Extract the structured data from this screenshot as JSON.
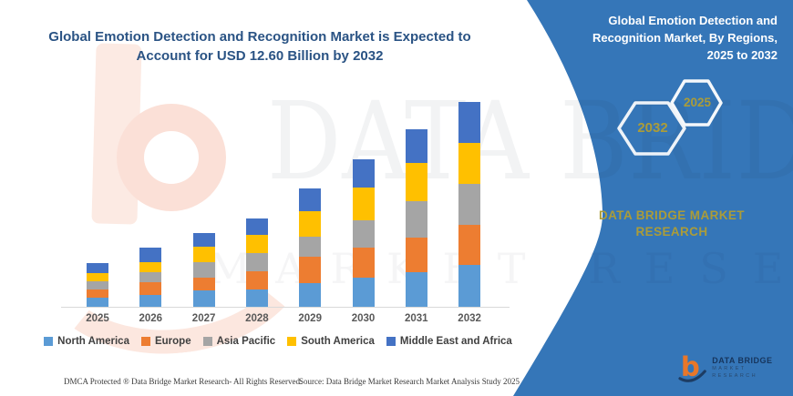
{
  "chart": {
    "title_line1": "Global Emotion Detection and Recognition Market is Expected to",
    "title_line2": "Account for USD 12.60 Billion by 2032"
  },
  "chart_data": {
    "type": "bar",
    "stacked": true,
    "title": "Global Emotion Detection and Recognition Market is Expected to Account for USD 12.60 Billion by 2032",
    "unit": "USD Billion",
    "categories": [
      "2025",
      "2026",
      "2027",
      "2028",
      "2029",
      "2030",
      "2031",
      "2032"
    ],
    "series": [
      {
        "name": "North America",
        "color": "#5B9BD5",
        "values": [
          0.55,
          0.75,
          1.03,
          1.09,
          1.46,
          1.78,
          2.11,
          2.57
        ]
      },
      {
        "name": "Europe",
        "color": "#ED7D31",
        "values": [
          0.52,
          0.75,
          0.75,
          1.12,
          1.63,
          1.87,
          2.15,
          2.49
        ]
      },
      {
        "name": "Asia Pacific",
        "color": "#A5A5A5",
        "values": [
          0.52,
          0.62,
          0.94,
          1.12,
          1.22,
          1.68,
          2.24,
          2.49
        ]
      },
      {
        "name": "South America",
        "color": "#FFC000",
        "values": [
          0.51,
          0.6,
          0.98,
          1.07,
          1.59,
          1.98,
          2.34,
          2.53
        ]
      },
      {
        "name": "Middle East and Africa",
        "color": "#4472C4",
        "values": [
          0.58,
          0.9,
          0.81,
          1.04,
          1.37,
          1.76,
          2.09,
          2.52
        ]
      }
    ],
    "totals": [
      2.68,
      3.62,
      4.51,
      5.44,
      7.27,
      9.07,
      10.93,
      12.6
    ],
    "ylim": [
      0,
      12.6
    ],
    "y_axis_visible": false,
    "grid": false,
    "legend_position": "bottom"
  },
  "watermarks": {
    "brand_text": "DATA BRIDGE",
    "sub_text": "MARKET RESEARCH"
  },
  "panel": {
    "background": "#3576b8",
    "accent": "#ab9c39",
    "title_line1": "Global Emotion Detection and",
    "title_line2": "Recognition Market, By Regions,",
    "title_line3": "2025 to 2032",
    "hex_left_label": "2032",
    "hex_right_label": "2025",
    "brand_line1": "DATA BRIDGE MARKET",
    "brand_line2": "RESEARCH",
    "logo": {
      "mark": "b",
      "name": "DATA BRIDGE",
      "sub": "MARKET RESEARCH"
    }
  },
  "footer": {
    "dmca": "DMCA Protected ® Data Bridge Market Research-  All Rights Reserved.",
    "source": "Source: Data Bridge Market Research  Market Analysis Study 2025"
  }
}
